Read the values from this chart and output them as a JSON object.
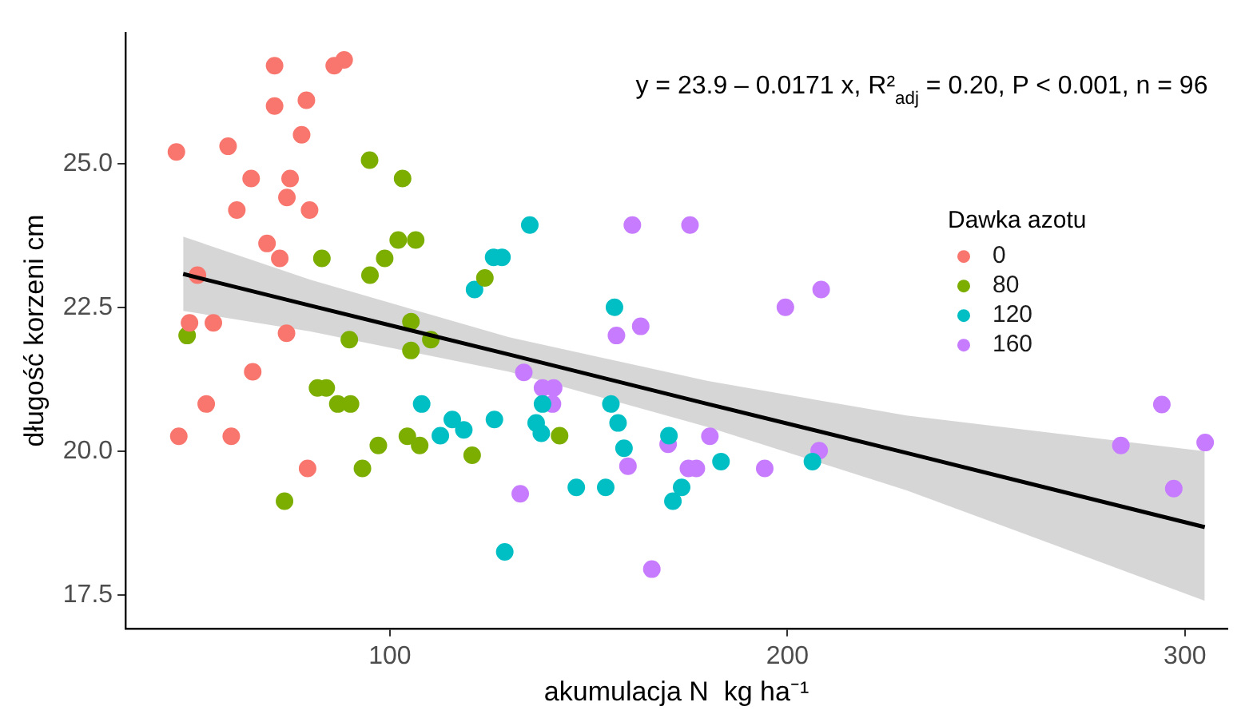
{
  "chart_data": {
    "type": "scatter",
    "xlabel": "akumulacja N  kg ha⁻¹",
    "ylabel": "długość korzeni cm",
    "legend_title": "Dawka azotu",
    "legend": "right",
    "grid": false,
    "marker": "circle",
    "annotations": [
      "y = 23.9 – 0.0171 x, R²$_{adj}$ = 0.20, P < 0.001, n = 96"
    ],
    "xlim": [
      33.5,
      310.7
    ],
    "xticks": [
      100,
      200,
      300
    ],
    "ylim": [
      16.92,
      27.27
    ],
    "yticks": [
      {
        "value": 17.5,
        "label": "17.5"
      },
      {
        "value": 20,
        "label": "20.0"
      },
      {
        "value": 22.5,
        "label": "22.5"
      },
      {
        "value": 25,
        "label": "25.0"
      }
    ],
    "series": [
      {
        "name": "0",
        "color": "#f8766d",
        "x": [
          71,
          86,
          88.5,
          71,
          79,
          77.8,
          46.3,
          59.3,
          65.1,
          74.9,
          74.1,
          61.5,
          79.8,
          69.1,
          72.3,
          51.6,
          49.6,
          55.6,
          74,
          65.5,
          53.8,
          46.9,
          60.1,
          79.3
        ],
        "values": [
          26.7,
          26.7,
          26.8,
          26,
          26.1,
          25.5,
          25.2,
          25.3,
          24.74,
          24.74,
          24.41,
          24.19,
          24.19,
          23.61,
          23.35,
          23.06,
          22.23,
          22.23,
          22.05,
          21.38,
          20.82,
          20.26,
          20.26,
          19.7
        ]
      },
      {
        "name": "80",
        "color": "#7cae00",
        "x": [
          94.9,
          103.2,
          102.1,
          106.5,
          82.9,
          98.7,
          95,
          105.3,
          49,
          89.8,
          110.3,
          105.3,
          81.8,
          84,
          86.9,
          90.1,
          97.1,
          104.4,
          107.5,
          93.1,
          73.5,
          123.9,
          120.7,
          142.7
        ],
        "values": [
          25.06,
          24.74,
          23.67,
          23.67,
          23.35,
          23.35,
          23.06,
          22.25,
          22.01,
          21.94,
          21.94,
          21.75,
          21.1,
          21.1,
          20.82,
          20.82,
          20.1,
          20.26,
          20.1,
          19.7,
          19.13,
          23.01,
          19.93,
          20.27
        ]
      },
      {
        "name": "120",
        "color": "#00bfc4",
        "x": [
          135.2,
          126.1,
          128.2,
          121.3,
          156.5,
          108,
          138.4,
          155.6,
          115.7,
          126.3,
          136.8,
          157.4,
          118.6,
          112.7,
          138.1,
          170.2,
          158.9,
          183.3,
          206.3,
          146.9,
          154.3,
          173.4,
          171.2,
          128.9
        ],
        "values": [
          23.93,
          23.37,
          23.37,
          22.81,
          22.5,
          20.82,
          20.82,
          20.82,
          20.55,
          20.55,
          20.49,
          20.49,
          20.37,
          20.27,
          20.31,
          20.27,
          20.05,
          19.82,
          19.82,
          19.37,
          19.37,
          19.37,
          19.13,
          18.25
        ]
      },
      {
        "name": "160",
        "color": "#c77cff",
        "x": [
          161,
          175.5,
          208.5,
          199.5,
          163.1,
          157,
          133.7,
          138.4,
          141.2,
          140.9,
          180.5,
          170,
          208,
          159.9,
          175.1,
          177.1,
          194.3,
          132.8,
          165.9,
          294.2,
          283.9,
          305.1,
          297.2
        ],
        "values": [
          23.93,
          23.93,
          22.81,
          22.5,
          22.17,
          22.01,
          21.37,
          21.1,
          21.1,
          20.82,
          20.26,
          20.12,
          20.01,
          19.74,
          19.7,
          19.7,
          19.7,
          19.26,
          17.95,
          20.81,
          20.1,
          20.15,
          19.35
        ]
      },
      {
        "type": "line",
        "color": "#000000",
        "marker": "none",
        "x": [
          48,
          80,
          130,
          180,
          230,
          305
        ],
        "values": [
          23.08,
          22.53,
          21.68,
          20.82,
          19.97,
          18.68
        ],
        "lower": [
          22.44,
          22.08,
          21.38,
          20.42,
          19.32,
          17.4
        ],
        "upper": [
          23.73,
          22.98,
          21.98,
          21.22,
          20.62,
          20.0
        ]
      }
    ]
  }
}
